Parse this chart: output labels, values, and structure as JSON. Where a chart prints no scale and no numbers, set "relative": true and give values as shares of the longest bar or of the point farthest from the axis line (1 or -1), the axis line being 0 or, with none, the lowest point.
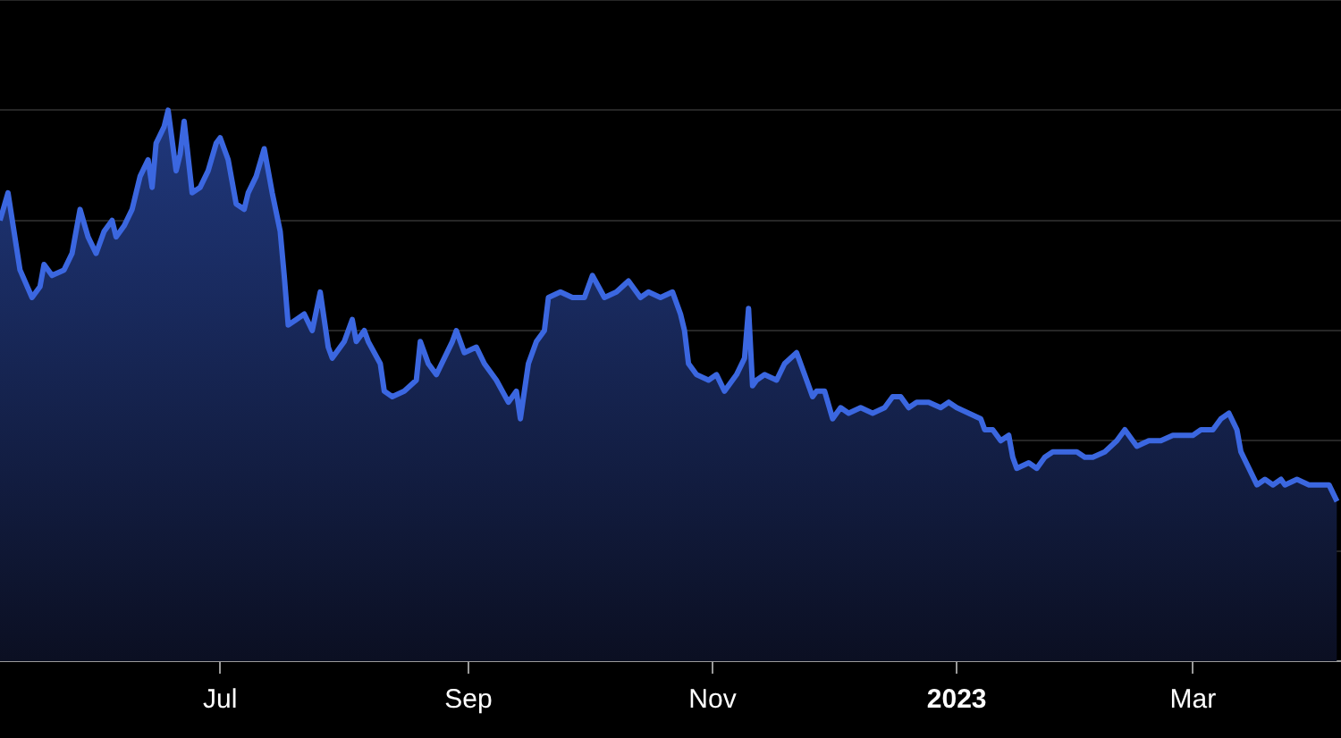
{
  "chart_data": {
    "type": "area",
    "relative": true,
    "grid": "y",
    "legend": false,
    "marker": "none",
    "line_style": "solid",
    "xlim": [
      "2022-05-07",
      "2023-04-07"
    ],
    "xticks": [
      {
        "value": "2022-07-01",
        "label": "Jul"
      },
      {
        "value": "2022-09-01",
        "label": "Sep"
      },
      {
        "value": "2022-11-01",
        "label": "Nov"
      },
      {
        "value": "2023-01-01",
        "label": "2023"
      },
      {
        "value": "2023-03-01",
        "label": "Mar"
      }
    ],
    "x": [
      "2022-05-07",
      "2022-05-09",
      "2022-05-12",
      "2022-05-15",
      "2022-05-17",
      "2022-05-18",
      "2022-05-20",
      "2022-05-23",
      "2022-05-25",
      "2022-05-27",
      "2022-05-29",
      "2022-05-31",
      "2022-06-02",
      "2022-06-04",
      "2022-06-05",
      "2022-06-07",
      "2022-06-09",
      "2022-06-11",
      "2022-06-13",
      "2022-06-14",
      "2022-06-15",
      "2022-06-17",
      "2022-06-18",
      "2022-06-20",
      "2022-06-21",
      "2022-06-22",
      "2022-06-24",
      "2022-06-26",
      "2022-06-28",
      "2022-06-30",
      "2022-07-01",
      "2022-07-03",
      "2022-07-05",
      "2022-07-07",
      "2022-07-08",
      "2022-07-10",
      "2022-07-12",
      "2022-07-14",
      "2022-07-16",
      "2022-07-17",
      "2022-07-18",
      "2022-07-20",
      "2022-07-22",
      "2022-07-24",
      "2022-07-26",
      "2022-07-28",
      "2022-07-29",
      "2022-08-01",
      "2022-08-03",
      "2022-08-04",
      "2022-08-06",
      "2022-08-07",
      "2022-08-10",
      "2022-08-11",
      "2022-08-13",
      "2022-08-16",
      "2022-08-19",
      "2022-08-20",
      "2022-08-22",
      "2022-08-24",
      "2022-08-26",
      "2022-08-28",
      "2022-08-29",
      "2022-08-31",
      "2022-09-03",
      "2022-09-05",
      "2022-09-08",
      "2022-09-11",
      "2022-09-13",
      "2022-09-14",
      "2022-09-16",
      "2022-09-18",
      "2022-09-20",
      "2022-09-21",
      "2022-09-24",
      "2022-09-27",
      "2022-09-30",
      "2022-10-02",
      "2022-10-05",
      "2022-10-08",
      "2022-10-11",
      "2022-10-14",
      "2022-10-16",
      "2022-10-19",
      "2022-10-22",
      "2022-10-24",
      "2022-10-25",
      "2022-10-26",
      "2022-10-28",
      "2022-10-31",
      "2022-11-02",
      "2022-11-04",
      "2022-11-07",
      "2022-11-09",
      "2022-11-10",
      "2022-11-11",
      "2022-11-12",
      "2022-11-14",
      "2022-11-17",
      "2022-11-19",
      "2022-11-22",
      "2022-11-24",
      "2022-11-26",
      "2022-11-27",
      "2022-11-29",
      "2022-12-01",
      "2022-12-03",
      "2022-12-05",
      "2022-12-08",
      "2022-12-11",
      "2022-12-14",
      "2022-12-16",
      "2022-12-18",
      "2022-12-20",
      "2022-12-22",
      "2022-12-25",
      "2022-12-28",
      "2022-12-30",
      "2023-01-01",
      "2023-01-04",
      "2023-01-07",
      "2023-01-08",
      "2023-01-10",
      "2023-01-12",
      "2023-01-14",
      "2023-01-15",
      "2023-01-16",
      "2023-01-19",
      "2023-01-21",
      "2023-01-23",
      "2023-01-25",
      "2023-01-28",
      "2023-01-31",
      "2023-02-02",
      "2023-02-04",
      "2023-02-07",
      "2023-02-10",
      "2023-02-12",
      "2023-02-15",
      "2023-02-18",
      "2023-02-21",
      "2023-02-24",
      "2023-02-27",
      "2023-03-01",
      "2023-03-03",
      "2023-03-06",
      "2023-03-08",
      "2023-03-10",
      "2023-03-12",
      "2023-03-13",
      "2023-03-15",
      "2023-03-17",
      "2023-03-19",
      "2023-03-21",
      "2023-03-23",
      "2023-03-24",
      "2023-03-27",
      "2023-03-30",
      "2023-04-01",
      "2023-04-04",
      "2023-04-06"
    ],
    "series": [
      {
        "color": "#3b67e0",
        "values": [
          0.8,
          0.85,
          0.71,
          0.66,
          0.68,
          0.72,
          0.7,
          0.71,
          0.74,
          0.82,
          0.77,
          0.74,
          0.78,
          0.8,
          0.77,
          0.79,
          0.82,
          0.88,
          0.91,
          0.86,
          0.94,
          0.97,
          1.0,
          0.89,
          0.92,
          0.98,
          0.85,
          0.86,
          0.89,
          0.94,
          0.95,
          0.91,
          0.83,
          0.82,
          0.85,
          0.88,
          0.93,
          0.85,
          0.78,
          0.7,
          0.61,
          0.62,
          0.63,
          0.6,
          0.67,
          0.57,
          0.55,
          0.58,
          0.62,
          0.58,
          0.6,
          0.58,
          0.54,
          0.49,
          0.48,
          0.49,
          0.51,
          0.58,
          0.54,
          0.52,
          0.55,
          0.58,
          0.6,
          0.56,
          0.57,
          0.54,
          0.51,
          0.47,
          0.49,
          0.44,
          0.54,
          0.58,
          0.6,
          0.66,
          0.67,
          0.66,
          0.66,
          0.7,
          0.66,
          0.67,
          0.69,
          0.66,
          0.67,
          0.66,
          0.67,
          0.63,
          0.6,
          0.54,
          0.52,
          0.51,
          0.52,
          0.49,
          0.52,
          0.55,
          0.64,
          0.5,
          0.51,
          0.52,
          0.51,
          0.54,
          0.56,
          0.52,
          0.48,
          0.49,
          0.49,
          0.44,
          0.46,
          0.45,
          0.46,
          0.45,
          0.46,
          0.48,
          0.48,
          0.46,
          0.47,
          0.47,
          0.46,
          0.47,
          0.46,
          0.45,
          0.44,
          0.42,
          0.42,
          0.4,
          0.41,
          0.37,
          0.35,
          0.36,
          0.35,
          0.37,
          0.38,
          0.38,
          0.38,
          0.37,
          0.37,
          0.38,
          0.4,
          0.42,
          0.39,
          0.4,
          0.4,
          0.41,
          0.41,
          0.41,
          0.42,
          0.42,
          0.44,
          0.45,
          0.42,
          0.38,
          0.35,
          0.32,
          0.33,
          0.32,
          0.33,
          0.32,
          0.33,
          0.32,
          0.32,
          0.32,
          0.29
        ]
      }
    ]
  }
}
